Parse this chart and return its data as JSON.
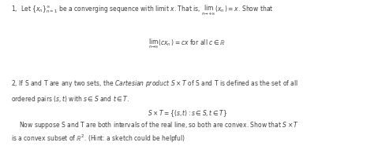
{
  "background_color": "#ffffff",
  "figsize": [
    4.74,
    1.86
  ],
  "dpi": 100,
  "fontsize": 5.5,
  "text_color": "#3d3d3d",
  "line1": "1,  Let $\\{x_n\\}_{n=1}^{\\infty}$ be a converging sequence with limit $x$. That is, $\\lim_{n \\to +\\infty}(x_n) = x$. Show that",
  "formula1": "$\\lim_{n \\to \\infty}(cx_n) = cx$ for all $c \\in \\mathbb{R}$",
  "line2": "2, If S and T are any two sets, the ",
  "line2_italic": "Cartesian product $S \\times T$",
  "line2_end": " of S and T is defined as the set of all",
  "line2b": "ordered pairs $(s,t)$ with $s \\in S$ and $t \\in T$.",
  "formula2": "$S \\times T = \\{(s,t) : s \\in S, t \\in T\\}$",
  "line3a": "Now suppose S and T are both intervals of the real line, so both are convex. Show that $S \\times T$",
  "line3b": "is a convex subset of $\\mathbb{R}^2$. (Hint: a sketch could be helpful)"
}
